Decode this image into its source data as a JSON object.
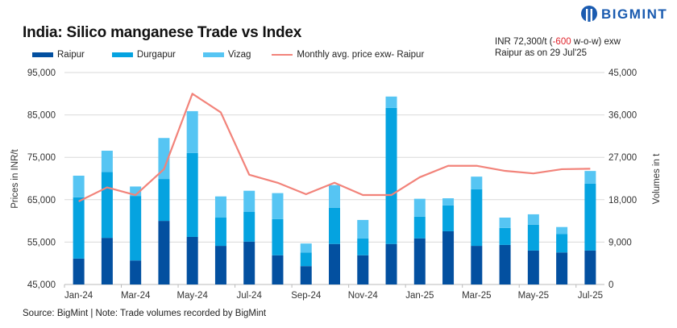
{
  "title": "India: Silico manganese Trade vs Index",
  "logo": {
    "text": "BIGMINT"
  },
  "note": {
    "prefix": "INR 72,300/t (",
    "change": "-600",
    "suffix": " w-o-w) exw",
    "line2": "Raipur as on 29 Jul'25"
  },
  "source": "Source: BigMint | Note: Trade volumes recorded by BigMint",
  "colors": {
    "Raipur": "#0350a0",
    "Durgapur": "#05a3e0",
    "Vizag": "#56c5f3",
    "price": "#f2837a"
  },
  "chart_data": {
    "type": "bar",
    "stacked": true,
    "categories": [
      "Jan-24",
      "Feb-24",
      "Mar-24",
      "Apr-24",
      "May-24",
      "Jun-24",
      "Jul-24",
      "Aug-24",
      "Sep-24",
      "Oct-24",
      "Nov-24",
      "Dec-24",
      "Jan-25",
      "Feb-25",
      "Mar-25",
      "Apr-25",
      "May-25",
      "Jun-25",
      "Jul-25"
    ],
    "x_tick_labels": [
      "Jan-24",
      "Mar-24",
      "May-24",
      "Jul-24",
      "Sep-24",
      "Nov-24",
      "Jan-25",
      "Mar-25",
      "May-25",
      "Jul-25"
    ],
    "series": [
      {
        "name": "Raipur",
        "axis": "right",
        "values": [
          5500,
          9900,
          5100,
          13500,
          10100,
          8200,
          9100,
          6200,
          3900,
          8600,
          6200,
          8600,
          9800,
          11300,
          8200,
          8400,
          7200,
          6800,
          7200
        ]
      },
      {
        "name": "Durgapur",
        "axis": "right",
        "values": [
          13000,
          14000,
          13700,
          8900,
          17800,
          6000,
          6300,
          7700,
          2900,
          7700,
          3600,
          28900,
          4600,
          5500,
          12000,
          3600,
          5500,
          3900,
          14200
        ]
      },
      {
        "name": "Vizag",
        "axis": "right",
        "values": [
          4600,
          4500,
          2000,
          8700,
          8900,
          4500,
          4500,
          5500,
          1900,
          4800,
          3900,
          2400,
          3800,
          1500,
          2700,
          2200,
          2200,
          1500,
          2700
        ]
      },
      {
        "name": "Monthly avg. price exw- Raipur",
        "type": "line",
        "axis": "left",
        "values": [
          64600,
          67900,
          66100,
          72200,
          90000,
          85600,
          70900,
          69000,
          66300,
          69000,
          66100,
          66100,
          70300,
          73000,
          73000,
          71800,
          71200,
          72200,
          72300
        ]
      }
    ],
    "ylabel_left": "Prices in INR/t",
    "ylabel_right": "Volumes in t",
    "ylim_left": [
      45000,
      95000
    ],
    "ylim_right": [
      0,
      45000
    ],
    "y_ticks_left": [
      "45,000",
      "55,000",
      "65,000",
      "75,000",
      "85,000",
      "95,000"
    ],
    "y_ticks_right": [
      "0",
      "9,000",
      "18,000",
      "27,000",
      "36,000",
      "45,000"
    ],
    "grid": true,
    "legend": "top"
  }
}
